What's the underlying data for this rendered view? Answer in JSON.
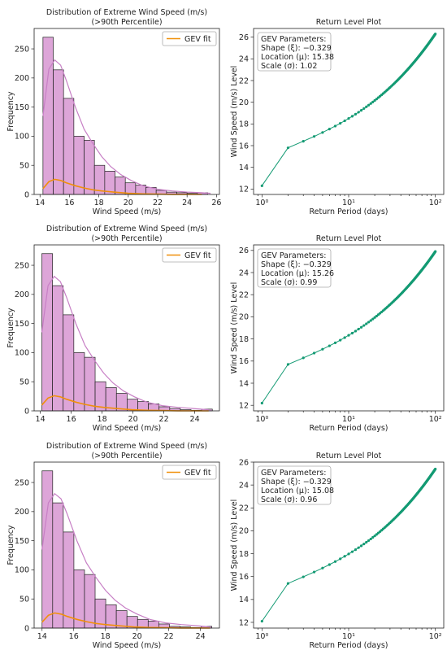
{
  "legend_label": "GEV fit",
  "params_heading": "GEV Parameters:",
  "colors": {
    "hist": "#dda5d8",
    "kde": "#c77fc5",
    "gev": "#f0900a",
    "return_level": "#139a73"
  },
  "chart_data": [
    {
      "type": "bar",
      "title": "Distribution of Extreme Wind Speed (m/s)",
      "subtitle": "(>90th Percentile)",
      "xlabel": "Wind Speed (m/s)",
      "ylabel": "Frequency",
      "xlim": [
        13.6,
        26.2
      ],
      "ylim": [
        0,
        285
      ],
      "xticks": [
        14,
        16,
        18,
        20,
        22,
        24,
        26
      ],
      "yticks": [
        0,
        50,
        100,
        150,
        200,
        250
      ],
      "bin_edges": [
        14.2,
        14.9,
        15.6,
        16.3,
        17.0,
        17.7,
        18.4,
        19.1,
        19.8,
        20.5,
        21.2,
        21.9,
        22.6,
        23.3,
        24.0,
        24.7,
        25.4
      ],
      "values": [
        270,
        214,
        165,
        100,
        93,
        50,
        40,
        30,
        20,
        16,
        12,
        7,
        4,
        3,
        2,
        3
      ],
      "kde": {
        "x": [
          14.2,
          14.6,
          15.0,
          15.4,
          15.8,
          16.4,
          17.0,
          17.6,
          18.2,
          18.8,
          19.5,
          20.2,
          21.0,
          22.0,
          23.0,
          24.0,
          25.0,
          25.6
        ],
        "y": [
          135,
          215,
          231,
          222,
          195,
          150,
          112,
          87,
          65,
          48,
          34,
          24,
          15,
          9,
          6,
          4,
          3,
          2
        ]
      },
      "gev": {
        "x": [
          14.2,
          14.6,
          15.0,
          15.4,
          15.8,
          16.4,
          17.0,
          17.6,
          18.2,
          19.0,
          20.0,
          21.0,
          22.0,
          23.0,
          24.0,
          25.0
        ],
        "y": [
          10,
          22,
          26,
          24,
          20,
          15,
          11,
          8,
          6,
          4,
          2,
          1,
          0.5,
          0.2,
          0.1,
          0
        ]
      },
      "legend_position": "upper right"
    },
    {
      "type": "line",
      "title": "Return Level Plot",
      "xlabel": "Return Period (days)",
      "ylabel": "Wind Speed (m/s) Level",
      "xscale": "log",
      "xlim": [
        0.8,
        125
      ],
      "ylim": [
        11.5,
        26.8
      ],
      "xticks": [
        1,
        10,
        100
      ],
      "xtick_labels": [
        "10⁰",
        "10¹",
        "10²"
      ],
      "yticks": [
        12,
        14,
        16,
        18,
        20,
        22,
        24,
        26
      ],
      "return_period_range": [
        1,
        100
      ],
      "level_start": 12.3,
      "level_end": 26.3,
      "level_at_period_2": 15.8,
      "gev_params": {
        "shape": "Shape (ξ): −0.329",
        "location": "Location (μ): 15.38",
        "scale": "Scale (σ): 1.02"
      }
    },
    {
      "type": "bar",
      "title": "Distribution of Extreme Wind Speed (m/s)",
      "subtitle": "(>90th Percentile)",
      "xlabel": "Wind Speed (m/s)",
      "ylabel": "Frequency",
      "xlim": [
        13.6,
        25.6
      ],
      "ylim": [
        0,
        285
      ],
      "xticks": [
        14,
        16,
        18,
        20,
        22,
        24
      ],
      "yticks": [
        0,
        50,
        100,
        150,
        200,
        250
      ],
      "bin_edges": [
        14.1,
        14.79,
        15.48,
        16.17,
        16.86,
        17.55,
        18.24,
        18.93,
        19.62,
        20.31,
        21.0,
        21.69,
        22.38,
        23.07,
        23.76,
        24.45,
        25.14
      ],
      "values": [
        270,
        215,
        165,
        100,
        92,
        50,
        40,
        30,
        20,
        16,
        12,
        7,
        4,
        2,
        1,
        3
      ],
      "kde": {
        "x": [
          14.1,
          14.5,
          14.9,
          15.3,
          15.7,
          16.3,
          16.9,
          17.5,
          18.1,
          18.7,
          19.4,
          20.1,
          20.9,
          21.9,
          22.9,
          23.9,
          24.9
        ],
        "y": [
          135,
          215,
          231,
          222,
          195,
          150,
          112,
          87,
          65,
          48,
          34,
          24,
          15,
          9,
          6,
          4,
          2
        ]
      },
      "gev": {
        "x": [
          14.1,
          14.5,
          14.9,
          15.3,
          15.7,
          16.3,
          16.9,
          17.5,
          18.1,
          18.9,
          19.9,
          20.9,
          21.9,
          22.9,
          23.9,
          24.9
        ],
        "y": [
          10,
          22,
          26,
          24,
          20,
          15,
          11,
          8,
          6,
          4,
          2,
          1,
          0.5,
          0.2,
          0.1,
          0
        ]
      },
      "legend_position": "upper right"
    },
    {
      "type": "line",
      "title": "Return Level Plot",
      "xlabel": "Return Period (days)",
      "ylabel": "Wind Speed (m/s) Level",
      "xscale": "log",
      "xlim": [
        0.8,
        125
      ],
      "ylim": [
        11.5,
        26.5
      ],
      "xticks": [
        1,
        10,
        100
      ],
      "xtick_labels": [
        "10⁰",
        "10¹",
        "10²"
      ],
      "yticks": [
        12,
        14,
        16,
        18,
        20,
        22,
        24,
        26
      ],
      "return_period_range": [
        1,
        100
      ],
      "level_start": 12.2,
      "level_end": 25.9,
      "level_at_period_2": 15.7,
      "gev_params": {
        "shape": "Shape (ξ): −0.329",
        "location": "Location (μ): 15.26",
        "scale": "Scale (σ): 0.99"
      }
    },
    {
      "type": "bar",
      "title": "Distribution of Extreme Wind Speed (m/s)",
      "subtitle": "(>90th Percentile)",
      "xlabel": "Wind Speed (m/s)",
      "ylabel": "Frequency",
      "xlim": [
        13.5,
        25.2
      ],
      "ylim": [
        0,
        285
      ],
      "xticks": [
        14,
        16,
        18,
        20,
        22,
        24
      ],
      "yticks": [
        0,
        50,
        100,
        150,
        200,
        250
      ],
      "bin_edges": [
        14.0,
        14.67,
        15.34,
        16.01,
        16.68,
        17.35,
        18.02,
        18.69,
        19.36,
        20.03,
        20.7,
        21.37,
        22.04,
        22.71,
        23.38,
        24.05,
        24.72
      ],
      "values": [
        270,
        215,
        165,
        100,
        92,
        50,
        40,
        30,
        20,
        15,
        12,
        7,
        3,
        2,
        1,
        3
      ],
      "kde": {
        "x": [
          14.0,
          14.4,
          14.8,
          15.2,
          15.6,
          16.2,
          16.8,
          17.4,
          18.0,
          18.6,
          19.3,
          20.0,
          20.8,
          21.8,
          22.8,
          23.8,
          24.6
        ],
        "y": [
          135,
          215,
          231,
          222,
          195,
          150,
          112,
          87,
          65,
          48,
          34,
          24,
          15,
          9,
          6,
          4,
          2
        ]
      },
      "gev": {
        "x": [
          14.0,
          14.4,
          14.8,
          15.2,
          15.6,
          16.2,
          16.8,
          17.4,
          18.0,
          18.8,
          19.8,
          20.8,
          21.8,
          22.8,
          23.8,
          24.6
        ],
        "y": [
          10,
          22,
          26,
          24,
          20,
          15,
          11,
          8,
          6,
          4,
          2,
          1,
          0.5,
          0.2,
          0.1,
          0
        ]
      },
      "legend_position": "upper right"
    },
    {
      "type": "line",
      "title": "Return Level Plot",
      "xlabel": "Return Period (days)",
      "ylabel": "Wind Speed (m/s) Level",
      "xscale": "log",
      "xlim": [
        0.8,
        125
      ],
      "ylim": [
        11.5,
        26.0
      ],
      "xticks": [
        1,
        10,
        100
      ],
      "xtick_labels": [
        "10⁰",
        "10¹",
        "10²"
      ],
      "yticks": [
        12,
        14,
        16,
        18,
        20,
        22,
        24,
        26
      ],
      "return_period_range": [
        1,
        100
      ],
      "level_start": 12.1,
      "level_end": 25.4,
      "level_at_period_2": 15.4,
      "gev_params": {
        "shape": "Shape (ξ): −0.329",
        "location": "Location (μ): 15.08",
        "scale": "Scale (σ): 0.96"
      }
    }
  ]
}
